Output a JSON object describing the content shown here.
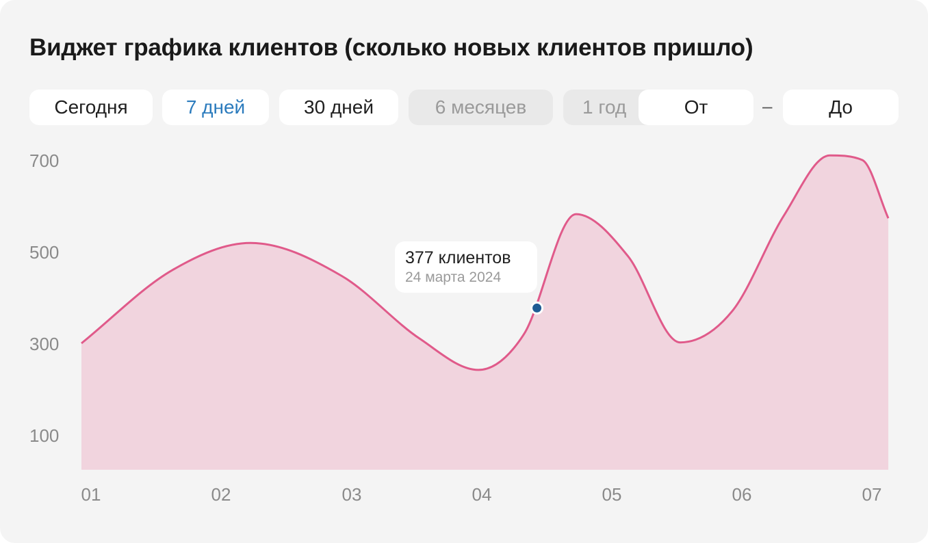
{
  "widget": {
    "title": "Виджет графика клиентов (сколько новых клиентов пришло)"
  },
  "periods": [
    {
      "label": "Сегодня",
      "state": "normal"
    },
    {
      "label": "7 дней",
      "state": "selected"
    },
    {
      "label": "30 дней",
      "state": "normal"
    },
    {
      "label": "6 месяцев",
      "state": "disabled"
    },
    {
      "label": "1 год",
      "state": "disabled"
    }
  ],
  "range": {
    "from_label": "От",
    "separator": "–",
    "to_label": "До"
  },
  "tooltip": {
    "value_text": "377 клиентов",
    "date_text": "24 марта 2024"
  },
  "colors": {
    "line": "#e05a8a",
    "fill": "#f1d4de",
    "marker": "#1f5c94",
    "selected_text": "#2b7bbd"
  },
  "chart_data": {
    "type": "area",
    "title": "",
    "xlabel": "",
    "ylabel": "",
    "x_ticks": [
      "01",
      "02",
      "03",
      "04",
      "05",
      "06",
      "07"
    ],
    "y_ticks": [
      100,
      300,
      500,
      700
    ],
    "ylim": [
      24,
      724
    ],
    "xlim": [
      1,
      7
    ],
    "curve_style": "smooth",
    "series": [
      {
        "x": [
          1,
          1.7,
          2.3,
          3.0,
          3.6,
          4.05,
          4.4,
          4.8,
          5.2,
          5.6,
          6.0,
          6.4,
          6.75,
          7.0,
          7.2
        ],
        "y": [
          300,
          460,
          519,
          447,
          310,
          242,
          320,
          582,
          490,
          302,
          370,
          580,
          710,
          700,
          573
        ]
      }
    ],
    "highlighted_point": {
      "x": 4.5,
      "y": 377,
      "label": "377 клиентов",
      "sublabel": "24 марта 2024"
    },
    "grid": false,
    "legend": "none"
  }
}
